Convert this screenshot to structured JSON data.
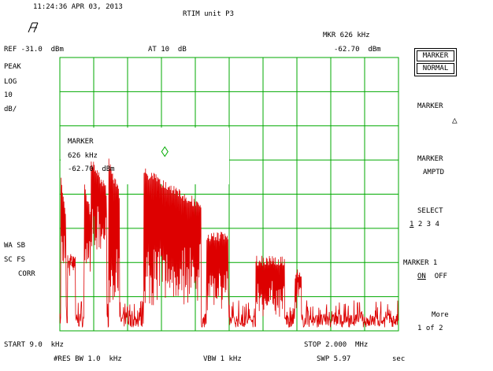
{
  "header": {
    "timestamp": "11:24:36 APR 03, 2013",
    "title": "RTIM unit P3",
    "ref": "REF -31.0  dBm",
    "atten": "AT 10  dB",
    "mkr_label": "MKR 626 kHz",
    "mkr_value": "-62.70  dBm"
  },
  "left_panel": {
    "peak": "PEAK",
    "log": "LOG",
    "scale_num": "10",
    "scale_unit": "dB/",
    "wa_sb": "WA SB",
    "sc_fs": "SC FS",
    "corr": "CORR"
  },
  "marker_box": {
    "title": "MARKER",
    "freq": "626 kHz",
    "level": "-62.70  dBm"
  },
  "softkeys": {
    "marker_normal_1": "MARKER",
    "marker_normal_2": "NORMAL",
    "marker_delta": "MARKER",
    "delta_symbol": "△",
    "marker_ampt_1": "MARKER",
    "marker_ampt_2": "AMPTD",
    "select_label": "SELECT",
    "select_1": "1",
    "select_rest": " 2 3 4",
    "marker1_label": "MARKER 1",
    "on": "ON",
    "off": "OFF",
    "more": "More",
    "page": "1 of 2"
  },
  "footer": {
    "start": "START 9.0  kHz",
    "stop": "STOP 2.000  MHz",
    "res_bw": "#RES BW 1.0  kHz",
    "vbw": "VBW 1 kHz",
    "swp": "SWP 5.97",
    "sec": "sec"
  },
  "colors": {
    "grid": "#00aa00",
    "trace": "#dd0000"
  },
  "chart_data": {
    "type": "line",
    "x_start_khz": 9.0,
    "x_stop_khz": 2000,
    "ref_level_dbm": -31.0,
    "scale_db_per_div": 10,
    "x_divisions": 10,
    "y_divisions": 8,
    "marker": {
      "freq_khz": 626,
      "level_dbm": -62.7
    },
    "segments": [
      {
        "f": [
          15,
          45
        ],
        "top_dbm": -65,
        "bottom_dbm": -96
      },
      {
        "f": [
          55,
          100
        ],
        "top_dbm": -88,
        "bottom_dbm": -96
      },
      {
        "f": [
          150,
          190
        ],
        "top_dbm": -66,
        "bottom_dbm": -97
      },
      {
        "f": [
          190,
          285
        ],
        "top_dbm": -59,
        "bottom_dbm": -92
      },
      {
        "f": [
          295,
          360
        ],
        "top_dbm": -60,
        "bottom_dbm": -106
      },
      {
        "f": [
          500,
          840
        ],
        "top_dbm": -63,
        "bottom_dbm": -105
      },
      {
        "f": [
          870,
          1000
        ],
        "top_dbm": -82,
        "bottom_dbm": -106
      },
      {
        "f": [
          1160,
          1330
        ],
        "top_dbm": -89,
        "bottom_dbm": -108
      },
      {
        "f": [
          1390,
          1430
        ],
        "top_dbm": -93,
        "bottom_dbm": -107
      }
    ],
    "noise_floor_dbm": -108
  }
}
